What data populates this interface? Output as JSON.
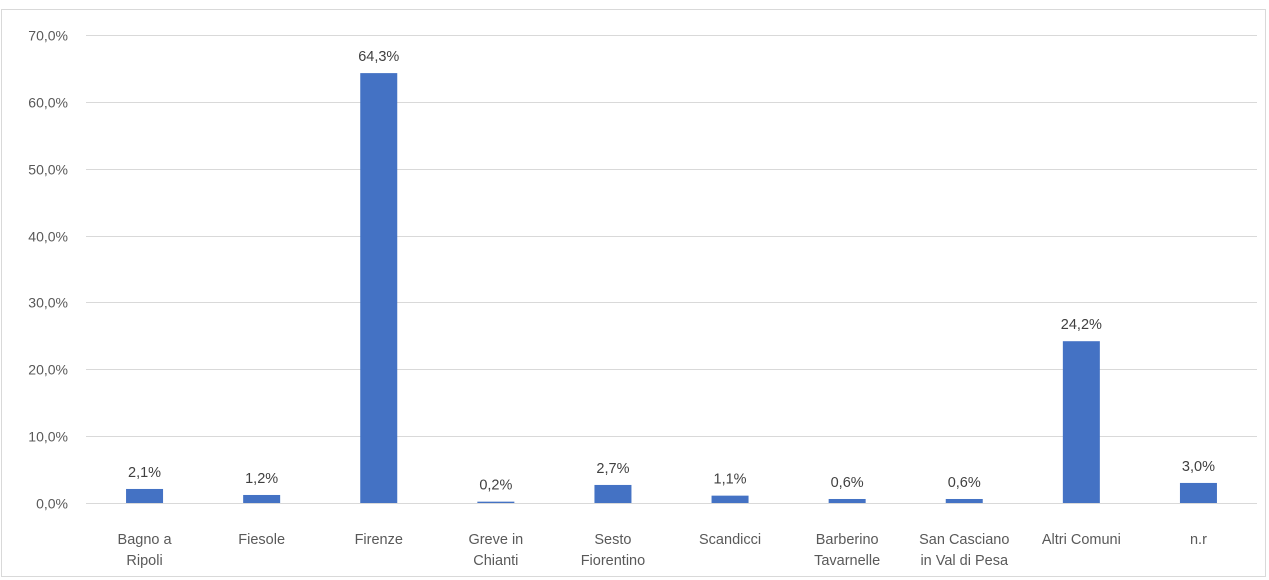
{
  "chart_data": {
    "type": "bar",
    "title": "",
    "xlabel": "",
    "ylabel": "",
    "categories": [
      [
        "Bagno a",
        "Ripoli"
      ],
      [
        "Fiesole"
      ],
      [
        "Firenze"
      ],
      [
        "Greve in",
        "Chianti"
      ],
      [
        "Sesto",
        "Fiorentino"
      ],
      [
        "Scandicci"
      ],
      [
        "Barberino",
        "Tavarnelle"
      ],
      [
        "San Casciano",
        "in Val di Pesa"
      ],
      [
        "Altri Comuni"
      ],
      [
        "n.r"
      ]
    ],
    "values": [
      2.1,
      1.2,
      64.3,
      0.2,
      2.7,
      1.1,
      0.6,
      0.6,
      24.2,
      3.0
    ],
    "data_labels": [
      "2,1%",
      "1,2%",
      "64,3%",
      "0,2%",
      "2,7%",
      "1,1%",
      "0,6%",
      "0,6%",
      "24,2%",
      "3,0%"
    ],
    "ylim": [
      0,
      70
    ],
    "yticks": [
      0,
      10,
      20,
      30,
      40,
      50,
      60,
      70
    ],
    "ytick_labels": [
      "0,0%",
      "10,0%",
      "20,0%",
      "30,0%",
      "40,0%",
      "50,0%",
      "60,0%",
      "70,0%"
    ],
    "grid": true,
    "legend": "none",
    "bar_color": "#4472C4"
  }
}
